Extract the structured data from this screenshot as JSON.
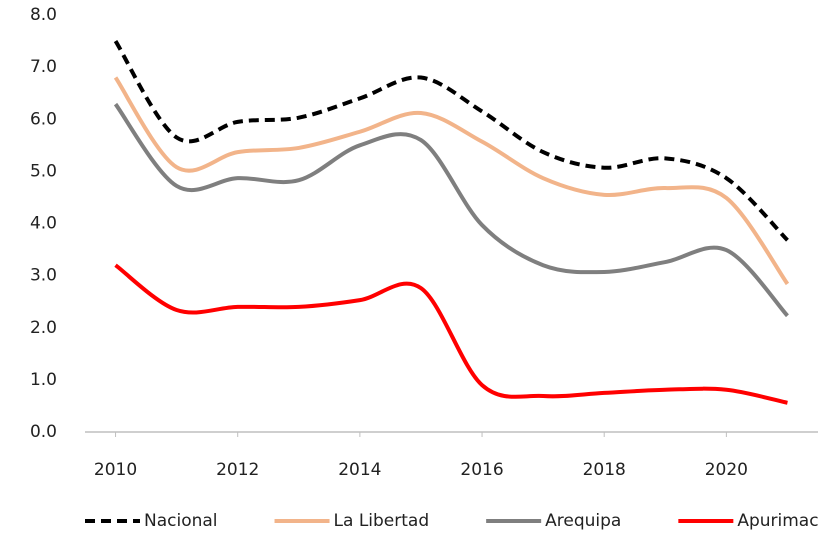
{
  "chart_data": {
    "type": "line",
    "x": [
      2010,
      2011,
      2012,
      2013,
      2014,
      2015,
      2016,
      2017,
      2018,
      2019,
      2020,
      2021
    ],
    "series": [
      {
        "name": "Nacional",
        "color": "#000000",
        "dash": true,
        "values": [
          7.5,
          5.65,
          5.95,
          6.03,
          6.4,
          6.8,
          6.15,
          5.37,
          5.07,
          5.25,
          4.87,
          3.68
        ]
      },
      {
        "name": "La Libertad",
        "color": "#f2b48a",
        "dash": false,
        "values": [
          6.8,
          5.08,
          5.37,
          5.45,
          5.76,
          6.12,
          5.57,
          4.87,
          4.55,
          4.68,
          4.49,
          2.84
        ]
      },
      {
        "name": "Arequipa",
        "color": "#7f7f7f",
        "dash": false,
        "values": [
          6.29,
          4.72,
          4.87,
          4.83,
          5.5,
          5.6,
          3.97,
          3.2,
          3.07,
          3.26,
          3.49,
          2.23
        ]
      },
      {
        "name": "Apurimac",
        "color": "#ff0000",
        "dash": false,
        "values": [
          3.2,
          2.34,
          2.4,
          2.4,
          2.53,
          2.76,
          0.9,
          0.69,
          0.75,
          0.81,
          0.81,
          0.56
        ]
      }
    ],
    "xlim": [
      2009.5,
      2021.5
    ],
    "xticks": [
      2010,
      2012,
      2014,
      2016,
      2018,
      2020
    ],
    "ylim": [
      0,
      8
    ],
    "yticks": [
      {
        "value": 0,
        "label": "0.0"
      },
      {
        "value": 1,
        "label": "1.0"
      },
      {
        "value": 2,
        "label": "2.0"
      },
      {
        "value": 3,
        "label": "3.0"
      },
      {
        "value": 4,
        "label": "4.0"
      },
      {
        "value": 5,
        "label": "5.0"
      },
      {
        "value": 6,
        "label": "6.0"
      },
      {
        "value": 7,
        "label": "7.0"
      },
      {
        "value": 8,
        "label": "8.0"
      }
    ],
    "grid": false,
    "legend": "bottom"
  }
}
